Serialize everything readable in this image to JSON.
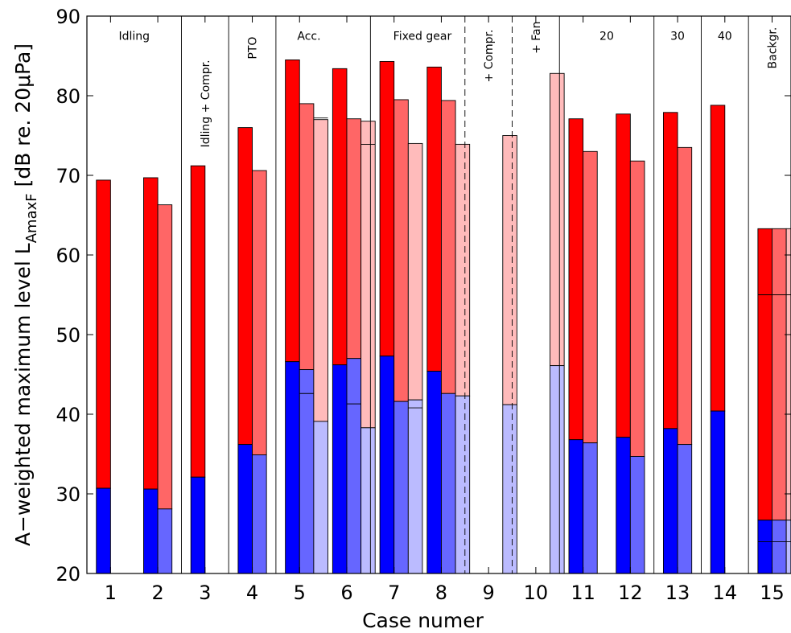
{
  "chart_data": {
    "type": "bar",
    "xlabel": "Case numer",
    "ylabel_main": "A−weighted maximum level L",
    "ylabel_sub": "AmaxF",
    "ylabel_tail": " [dB re. 20μPa]",
    "xlim": [
      0.5,
      15.4
    ],
    "ylim": [
      20,
      90
    ],
    "yticks": [
      20,
      30,
      40,
      50,
      60,
      70,
      80,
      90
    ],
    "xticks": [
      1,
      2,
      3,
      4,
      5,
      6,
      7,
      8,
      9,
      10,
      11,
      12,
      13,
      14,
      15
    ],
    "colors": {
      "red": [
        "#ff0000",
        "#ff6666",
        "#ffbbbb"
      ],
      "blue": [
        "#0000ff",
        "#6666ff",
        "#bbbbff"
      ]
    },
    "bars": [
      {
        "case": 1,
        "slot": 0,
        "top": 69.4,
        "low": 30.7
      },
      {
        "case": 2,
        "slot": 0,
        "top": 69.7,
        "low": 30.6
      },
      {
        "case": 2,
        "slot": 1,
        "top": 66.3,
        "low": 28.1
      },
      {
        "case": 3,
        "slot": 0,
        "top": 71.2,
        "low": 32.1
      },
      {
        "case": 4,
        "slot": 0,
        "top": 76.0,
        "low": 36.2
      },
      {
        "case": 4,
        "slot": 1,
        "top": 70.6,
        "low": 34.9
      },
      {
        "case": 5,
        "slot": 0,
        "top": 84.5,
        "low": 46.6
      },
      {
        "case": 5,
        "slot": 1,
        "top": 79.0,
        "low": 45.6,
        "mark": 42.6
      },
      {
        "case": 5,
        "slot": 2,
        "top": 77.0,
        "low": 39.1,
        "mark": 77.2
      },
      {
        "case": 6,
        "slot": 0,
        "top": 83.4,
        "low": 46.2
      },
      {
        "case": 6,
        "slot": 1,
        "top": 77.1,
        "low": 47.0,
        "mark": 41.3
      },
      {
        "case": 6,
        "slot": 2,
        "top": 76.8,
        "low": 38.3,
        "mark": 73.9
      },
      {
        "case": 7,
        "slot": 0,
        "top": 84.3,
        "low": 47.3
      },
      {
        "case": 7,
        "slot": 1,
        "top": 79.5,
        "low": 41.6
      },
      {
        "case": 7,
        "slot": 2,
        "top": 74.0,
        "low": 41.8,
        "mark": 40.8
      },
      {
        "case": 8,
        "slot": 0,
        "top": 83.6,
        "low": 45.4
      },
      {
        "case": 8,
        "slot": 1,
        "top": 79.4,
        "low": 42.6
      },
      {
        "case": 8,
        "slot": 2,
        "top": 73.9,
        "low": 42.3
      },
      {
        "case": 9,
        "slot": 2,
        "top": 75.0,
        "low": 41.2
      },
      {
        "case": 10,
        "slot": 2,
        "top": 82.8,
        "low": 46.1
      },
      {
        "case": 11,
        "slot": 0,
        "top": 77.1,
        "low": 36.8
      },
      {
        "case": 11,
        "slot": 1,
        "top": 73.0,
        "low": 36.4
      },
      {
        "case": 12,
        "slot": 0,
        "top": 77.7,
        "low": 37.1
      },
      {
        "case": 12,
        "slot": 1,
        "top": 71.8,
        "low": 34.7
      },
      {
        "case": 13,
        "slot": 0,
        "top": 77.9,
        "low": 38.2
      },
      {
        "case": 13,
        "slot": 1,
        "top": 73.5,
        "low": 36.2
      },
      {
        "case": 14,
        "slot": 0,
        "top": 78.8,
        "low": 40.4
      },
      {
        "case": 15,
        "slot": 0,
        "top": 63.3,
        "low": 26.7,
        "marks": [
          55.0,
          24.0
        ]
      },
      {
        "case": 15,
        "slot": 1,
        "top": 63.3,
        "low": 26.7,
        "marks": [
          55.0,
          24.0
        ]
      },
      {
        "case": 15,
        "slot": 2,
        "top": 63.3,
        "low": 26.7,
        "marks": [
          55.0,
          24.0
        ]
      }
    ],
    "separators": [
      {
        "x": 2.5,
        "style": "solid"
      },
      {
        "x": 3.5,
        "style": "solid"
      },
      {
        "x": 4.5,
        "style": "solid"
      },
      {
        "x": 6.5,
        "style": "solid"
      },
      {
        "x": 8.5,
        "style": "dashed"
      },
      {
        "x": 9.5,
        "style": "dashed"
      },
      {
        "x": 10.5,
        "style": "solid"
      },
      {
        "x": 12.5,
        "style": "solid"
      },
      {
        "x": 13.5,
        "style": "solid"
      },
      {
        "x": 14.5,
        "style": "solid"
      }
    ],
    "group_labels": [
      {
        "text": "Idling",
        "x": 1.5,
        "y": 87,
        "rotate": false
      },
      {
        "text": "Idling + Compr.",
        "x": 3.0,
        "y": 79,
        "rotate": true
      },
      {
        "text": "PTO",
        "x": 4.0,
        "y": 86,
        "rotate": true
      },
      {
        "text": "Acc.",
        "x": 5.2,
        "y": 87,
        "rotate": false
      },
      {
        "text": "Fixed gear",
        "x": 7.6,
        "y": 87,
        "rotate": false
      },
      {
        "text": "+ Compr.",
        "x": 9.0,
        "y": 85,
        "rotate": true
      },
      {
        "text": "+ Fan",
        "x": 10.0,
        "y": 87.3,
        "rotate": true
      },
      {
        "text": "20",
        "x": 11.5,
        "y": 87,
        "rotate": false
      },
      {
        "text": "30",
        "x": 13.0,
        "y": 87,
        "rotate": false
      },
      {
        "text": "40",
        "x": 14.0,
        "y": 87,
        "rotate": false
      },
      {
        "text": "Backgr.",
        "x": 15.0,
        "y": 86,
        "rotate": true
      }
    ]
  }
}
